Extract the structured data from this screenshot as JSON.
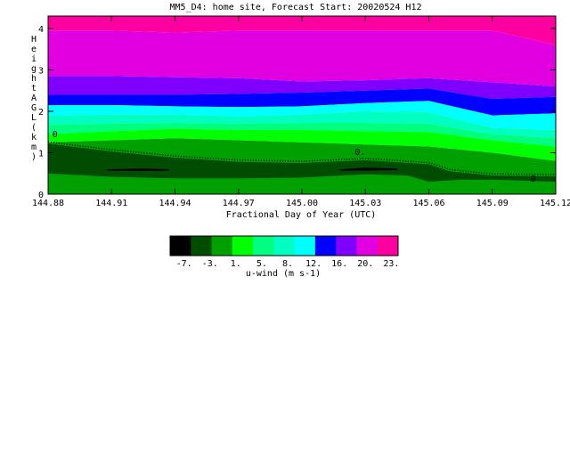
{
  "chart_data": {
    "type": "heatmap",
    "title": "MM5_D4: home site,  Forecast Start: 20020524 H12",
    "xlabel": "Fractional Day of Year (UTC)",
    "ylabel": "Height AGL (km)",
    "xlim": [
      144.88,
      145.12
    ],
    "ylim": [
      0,
      4.3
    ],
    "x_ticks": [
      "144.88",
      "144.91",
      "144.94",
      "144.97",
      "145.00",
      "145.03",
      "145.06",
      "145.09",
      "145.12"
    ],
    "y_ticks": [
      "0",
      "1",
      "2",
      "3",
      "4"
    ],
    "colorbar": {
      "label": "u-wind (m s-1)",
      "tick_labels": [
        "-7.",
        "-3.",
        "1.",
        "5.",
        "8.",
        "12.",
        "16.",
        "20.",
        "23."
      ],
      "colors": [
        "#000000",
        "#004c00",
        "#00a000",
        "#00ff00",
        "#00ff80",
        "#00ffc0",
        "#00ffff",
        "#0000ff",
        "#8000ff",
        "#e000e0",
        "#ff00a0"
      ]
    },
    "contour_labels": [
      "0",
      "0.",
      "0"
    ],
    "bands": [
      {
        "value_class": 10,
        "color": "#ff00a0",
        "top": [
          4.3,
          4.3,
          4.3,
          4.3,
          4.3,
          4.3,
          4.3,
          4.3,
          4.3
        ],
        "bottom": [
          3.95,
          3.95,
          3.9,
          3.95,
          3.95,
          3.95,
          3.95,
          3.95,
          3.6
        ]
      },
      {
        "value_class": 9,
        "color": "#e000e0",
        "top": [
          3.95,
          3.95,
          3.9,
          3.95,
          3.95,
          3.95,
          3.95,
          3.95,
          3.6
        ],
        "bottom": [
          2.85,
          2.85,
          2.82,
          2.8,
          2.72,
          2.75,
          2.8,
          2.7,
          2.6
        ]
      },
      {
        "value_class": 8,
        "color": "#8000ff",
        "top": [
          2.85,
          2.85,
          2.82,
          2.8,
          2.72,
          2.75,
          2.8,
          2.7,
          2.6
        ],
        "bottom": [
          2.4,
          2.4,
          2.4,
          2.42,
          2.45,
          2.5,
          2.55,
          2.3,
          2.35
        ]
      },
      {
        "value_class": 7,
        "color": "#0000ff",
        "top": [
          2.4,
          2.4,
          2.4,
          2.42,
          2.45,
          2.5,
          2.55,
          2.3,
          2.35
        ],
        "bottom": [
          2.15,
          2.15,
          2.12,
          2.1,
          2.12,
          2.2,
          2.25,
          1.9,
          1.95
        ]
      },
      {
        "value_class": 6,
        "color": "#00ffff",
        "top": [
          2.15,
          2.15,
          2.12,
          2.1,
          2.12,
          2.2,
          2.25,
          1.9,
          1.95
        ],
        "bottom": [
          1.9,
          1.92,
          1.92,
          1.88,
          1.92,
          2.0,
          1.98,
          1.6,
          1.55
        ]
      },
      {
        "value_class": 5,
        "color": "#00ffc0",
        "top": [
          1.9,
          1.92,
          1.92,
          1.88,
          1.92,
          2.0,
          1.98,
          1.6,
          1.55
        ],
        "bottom": [
          1.68,
          1.7,
          1.72,
          1.7,
          1.72,
          1.72,
          1.7,
          1.45,
          1.35
        ]
      },
      {
        "value_class": 4,
        "color": "#00ff80",
        "top": [
          1.68,
          1.7,
          1.72,
          1.7,
          1.72,
          1.72,
          1.7,
          1.45,
          1.35
        ],
        "bottom": [
          1.45,
          1.52,
          1.58,
          1.55,
          1.55,
          1.52,
          1.5,
          1.3,
          1.15
        ]
      },
      {
        "value_class": 3,
        "color": "#00ff00",
        "top": [
          1.45,
          1.52,
          1.58,
          1.55,
          1.55,
          1.52,
          1.5,
          1.3,
          1.15
        ],
        "bottom": [
          1.25,
          1.3,
          1.35,
          1.3,
          1.25,
          1.2,
          1.15,
          1.0,
          0.8
        ]
      },
      {
        "value_class": 2,
        "color": "#00a000",
        "top": [
          1.25,
          1.3,
          1.35,
          1.3,
          1.25,
          1.2,
          1.15,
          1.0,
          0.8
        ],
        "bottom": [
          0,
          0,
          0,
          0,
          0,
          0,
          0,
          0,
          0
        ]
      }
    ],
    "overlays": [
      {
        "value_class": 1,
        "color": "#004c00",
        "upper": [
          [
            144.88,
            1.22
          ],
          [
            144.91,
            1.03
          ],
          [
            144.94,
            0.88
          ],
          [
            144.97,
            0.78
          ],
          [
            145.0,
            0.75
          ],
          [
            145.03,
            0.82
          ],
          [
            145.06,
            0.72
          ],
          [
            145.07,
            0.55
          ],
          [
            145.09,
            0.45
          ],
          [
            145.12,
            0.43
          ]
        ],
        "lower": [
          [
            145.12,
            0.3
          ],
          [
            145.09,
            0.35
          ],
          [
            145.075,
            0.35
          ],
          [
            145.06,
            0.3
          ],
          [
            145.05,
            0.45
          ],
          [
            145.03,
            0.48
          ],
          [
            145.0,
            0.4
          ],
          [
            144.97,
            0.38
          ],
          [
            144.94,
            0.38
          ],
          [
            144.91,
            0.42
          ],
          [
            144.88,
            0.5
          ]
        ]
      },
      {
        "value_class": 0,
        "color": "#000000",
        "upper": [
          [
            144.908,
            0.6
          ],
          [
            144.925,
            0.62
          ],
          [
            144.937,
            0.6
          ]
        ],
        "lower": [
          [
            144.937,
            0.57
          ],
          [
            144.925,
            0.56
          ],
          [
            144.908,
            0.57
          ]
        ]
      },
      {
        "value_class": 0,
        "color": "#000000",
        "upper": [
          [
            145.018,
            0.6
          ],
          [
            145.03,
            0.64
          ],
          [
            145.045,
            0.62
          ]
        ],
        "lower": [
          [
            145.045,
            0.58
          ],
          [
            145.03,
            0.57
          ],
          [
            145.018,
            0.57
          ]
        ]
      }
    ],
    "grid": false
  }
}
